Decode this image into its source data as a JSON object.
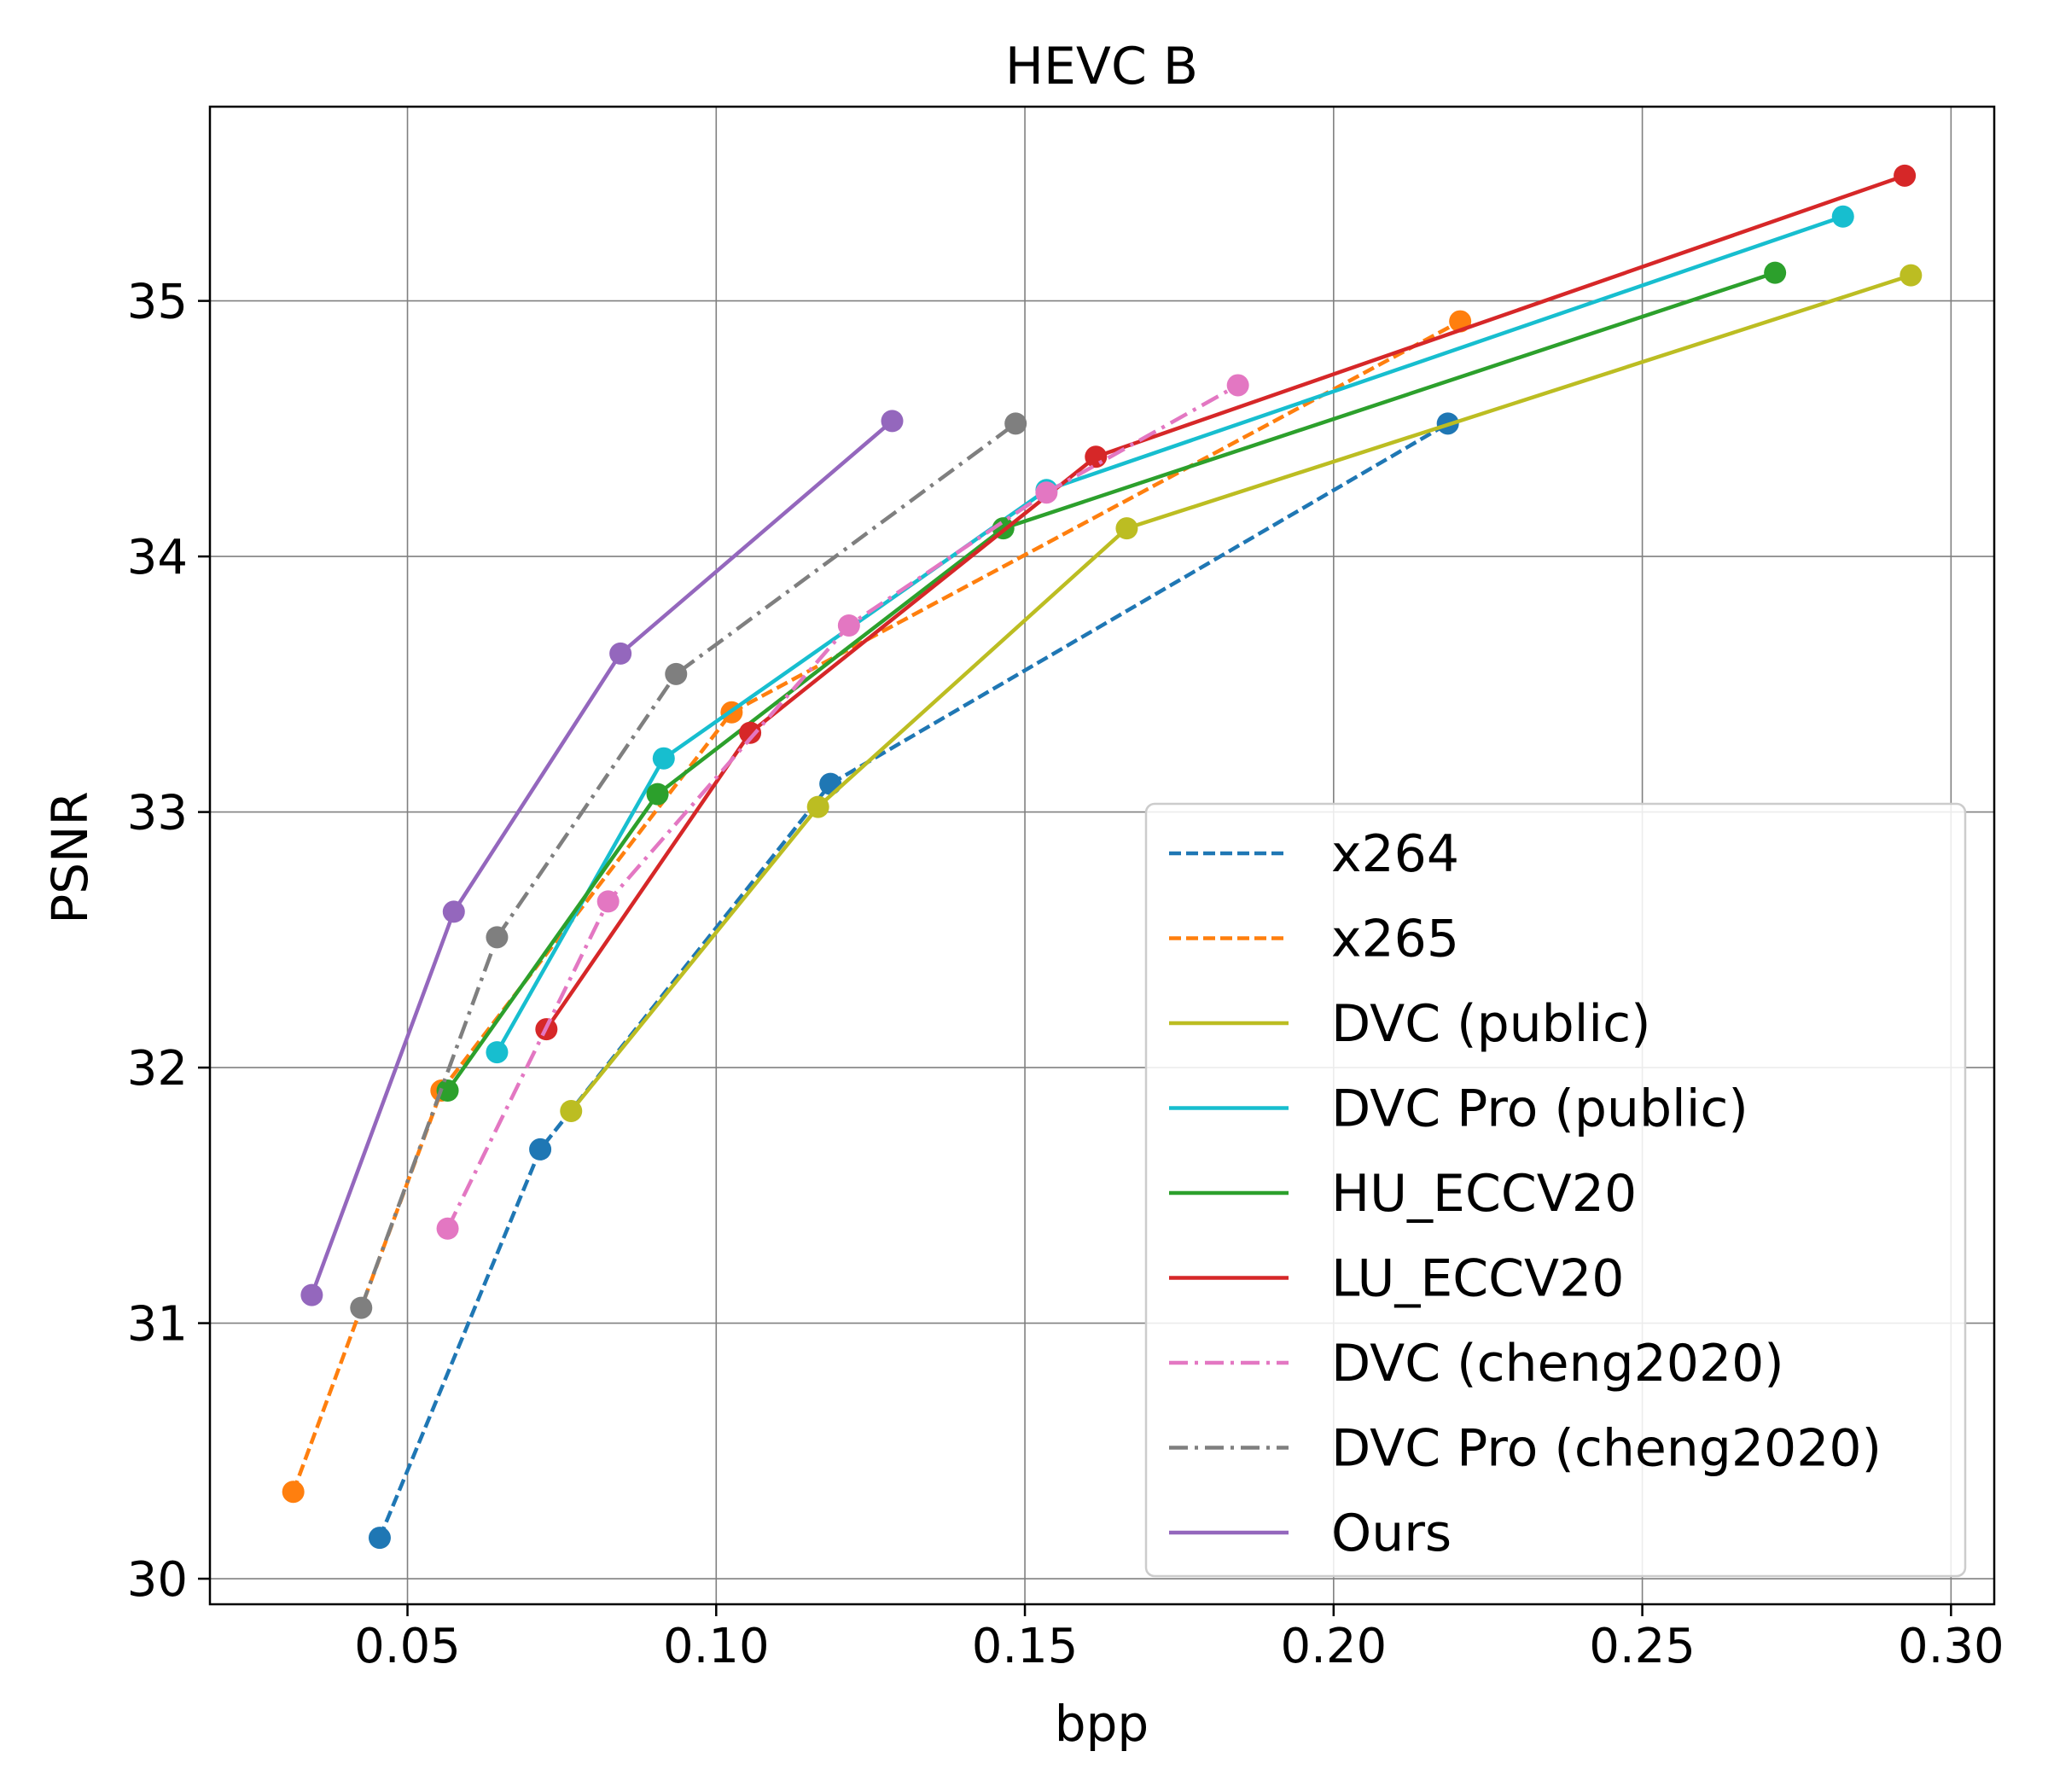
{
  "chart_data": {
    "type": "line",
    "title": "HEVC B",
    "xlabel": "bpp",
    "ylabel": "PSNR",
    "xlim": [
      0.018,
      0.307
    ],
    "ylim": [
      29.9,
      35.76
    ],
    "x_ticks": [
      0.05,
      0.1,
      0.15,
      0.2,
      0.25,
      0.3
    ],
    "x_tick_labels": [
      "0.05",
      "0.10",
      "0.15",
      "0.20",
      "0.25",
      "0.30"
    ],
    "y_ticks": [
      30,
      31,
      32,
      33,
      34,
      35
    ],
    "y_tick_labels": [
      "30",
      "31",
      "32",
      "33",
      "34",
      "35"
    ],
    "grid": true,
    "legend_position": "lower right",
    "series": [
      {
        "name": "x264",
        "color": "#1f77b4",
        "dash": "dashed",
        "x": [
          0.0455,
          0.0715,
          0.1185,
          0.2185
        ],
        "y": [
          30.16,
          31.68,
          33.11,
          34.52
        ]
      },
      {
        "name": "x265",
        "color": "#ff7f0e",
        "dash": "dashed",
        "x": [
          0.0315,
          0.0555,
          0.1025,
          0.2205
        ],
        "y": [
          30.34,
          31.91,
          33.39,
          34.92
        ]
      },
      {
        "name": "DVC (public)",
        "color": "#bcbd22",
        "dash": "solid",
        "x": [
          0.0765,
          0.1165,
          0.1665,
          0.2935
        ],
        "y": [
          31.83,
          33.02,
          34.11,
          35.1
        ]
      },
      {
        "name": "DVC Pro (public)",
        "color": "#17becf",
        "dash": "solid",
        "x": [
          0.0645,
          0.0915,
          0.1535,
          0.2825
        ],
        "y": [
          32.06,
          33.21,
          34.26,
          35.33
        ]
      },
      {
        "name": "HU_ECCV20",
        "color": "#2ca02c",
        "dash": "solid",
        "x": [
          0.0565,
          0.0905,
          0.1465,
          0.2715
        ],
        "y": [
          31.91,
          33.07,
          34.11,
          35.11
        ]
      },
      {
        "name": "LU_ECCV20",
        "color": "#d62728",
        "dash": "solid",
        "x": [
          0.0725,
          0.1055,
          0.1615,
          0.2925
        ],
        "y": [
          32.15,
          33.31,
          34.39,
          35.49
        ]
      },
      {
        "name": "DVC (cheng2020)",
        "color": "#e377c2",
        "dash": "dashdot",
        "x": [
          0.0565,
          0.0825,
          0.1215,
          0.1535,
          0.1845
        ],
        "y": [
          31.37,
          32.65,
          33.73,
          34.25,
          34.67
        ]
      },
      {
        "name": "DVC Pro (cheng2020)",
        "color": "#7f7f7f",
        "dash": "dashdot",
        "x": [
          0.0425,
          0.0645,
          0.0935,
          0.1485
        ],
        "y": [
          31.06,
          32.51,
          33.54,
          34.52
        ]
      },
      {
        "name": "Ours",
        "color": "#9467bd",
        "dash": "solid",
        "x": [
          0.0345,
          0.0575,
          0.0845,
          0.1285
        ],
        "y": [
          31.11,
          32.61,
          33.62,
          34.53
        ]
      }
    ]
  }
}
